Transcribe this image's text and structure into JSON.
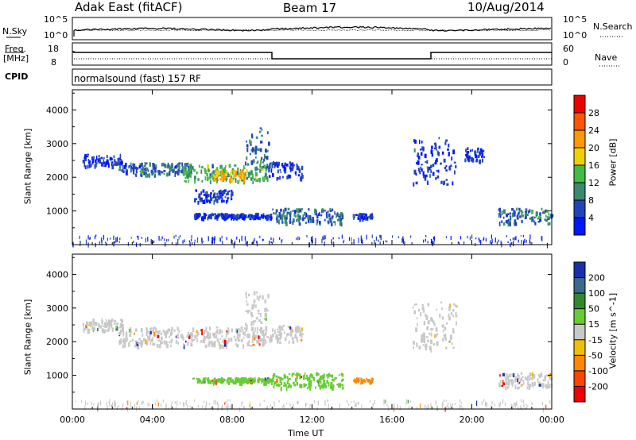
{
  "header": {
    "site": "Adak East (fitACF)",
    "beam": "Beam 17",
    "date": "10/Aug/2014"
  },
  "sky_panel": {
    "left_label": "N.Sky",
    "right_label": "N.Search",
    "ticks_left": [
      "10^5",
      "10^0"
    ],
    "ticks_right": [
      "10^5",
      "10^0"
    ]
  },
  "freq_panel": {
    "left_label_1": "Freq.",
    "left_label_2": "[MHz]",
    "right_label": "Nave",
    "ticks_left": [
      "18",
      "8"
    ],
    "ticks_right": [
      "60",
      "0"
    ]
  },
  "cpid": {
    "label": "CPID",
    "value": "normalsound (fast) 157 RF"
  },
  "chart_data": [
    {
      "type": "heatmap",
      "title": "",
      "ylabel": "Slant Range [km]",
      "xlabel": "",
      "ylim": [
        0,
        4600
      ],
      "xlim": [
        0,
        24
      ],
      "yticks": [
        "1000",
        "2000",
        "3000",
        "4000"
      ],
      "colorbar": {
        "label": "Power [dB]",
        "ticks": [
          "4",
          "8",
          "12",
          "16",
          "20",
          "24",
          "28"
        ],
        "colors": [
          "#0018ff",
          "#2244bb",
          "#3a8a70",
          "#44bb44",
          "#f0d000",
          "#ff9900",
          "#ff5500",
          "#ee0000"
        ]
      },
      "regions": [
        {
          "t0": 0.5,
          "t1": 2.5,
          "r0": 2350,
          "r1": 2700,
          "level": 1
        },
        {
          "t0": 2.3,
          "t1": 6.0,
          "r0": 2100,
          "r1": 2450,
          "level": 2
        },
        {
          "t0": 5.5,
          "t1": 9.8,
          "r0": 1900,
          "r1": 2400,
          "level": 3
        },
        {
          "t0": 7.0,
          "t1": 8.6,
          "r0": 1950,
          "r1": 2250,
          "level": 5
        },
        {
          "t0": 8.6,
          "t1": 9.8,
          "r0": 2400,
          "r1": 3500,
          "level": 2
        },
        {
          "t0": 9.8,
          "t1": 11.5,
          "r0": 2000,
          "r1": 2500,
          "level": 1
        },
        {
          "t0": 6.0,
          "t1": 8.0,
          "r0": 1300,
          "r1": 1650,
          "level": 1
        },
        {
          "t0": 6.0,
          "t1": 10.0,
          "r0": 820,
          "r1": 950,
          "level": 1
        },
        {
          "t0": 10.0,
          "t1": 13.5,
          "r0": 650,
          "r1": 1100,
          "level": 2
        },
        {
          "t0": 14.0,
          "t1": 15.0,
          "r0": 800,
          "r1": 950,
          "level": 1
        },
        {
          "t0": 17.0,
          "t1": 19.2,
          "r0": 1800,
          "r1": 3200,
          "level": 1
        },
        {
          "t0": 19.6,
          "t1": 20.6,
          "r0": 2500,
          "r1": 2900,
          "level": 1
        },
        {
          "t0": 21.3,
          "t1": 24.0,
          "r0": 650,
          "r1": 1100,
          "level": 2
        }
      ]
    },
    {
      "type": "heatmap",
      "title": "",
      "ylabel": "Slant Range [km]",
      "xlabel": "Time UT",
      "ylim": [
        0,
        4600
      ],
      "xlim": [
        0,
        24
      ],
      "yticks": [
        "1000",
        "2000",
        "3000",
        "4000"
      ],
      "xticks": [
        "00:00",
        "04:00",
        "08:00",
        "12:00",
        "16:00",
        "20:00",
        "00:00"
      ],
      "colorbar": {
        "label": "Velocity [m s^-1]",
        "ticks": [
          "200",
          "100",
          "50",
          "15",
          "-15",
          "-50",
          "-100",
          "-200"
        ],
        "colors": [
          "#1a2fb0",
          "#3a6a8a",
          "#2f8a2f",
          "#66cc33",
          "#c8c8c8",
          "#f0c000",
          "#ff8800",
          "#ff4400",
          "#ee0000"
        ]
      },
      "regions": [
        {
          "t0": 0.5,
          "t1": 2.5,
          "r0": 2350,
          "r1": 2700,
          "velocity": 0
        },
        {
          "t0": 2.3,
          "t1": 9.8,
          "r0": 1900,
          "r1": 2450,
          "velocity": 0
        },
        {
          "t0": 8.6,
          "t1": 9.8,
          "r0": 2400,
          "r1": 3500,
          "velocity": 0
        },
        {
          "t0": 9.8,
          "t1": 11.5,
          "r0": 2000,
          "r1": 2500,
          "velocity": 0
        },
        {
          "t0": 6.0,
          "t1": 10.0,
          "r0": 820,
          "r1": 950,
          "velocity": 40
        },
        {
          "t0": 10.0,
          "t1": 13.5,
          "r0": 650,
          "r1": 1100,
          "velocity": 40
        },
        {
          "t0": 14.0,
          "t1": 15.0,
          "r0": 820,
          "r1": 950,
          "velocity": -70
        },
        {
          "t0": 17.0,
          "t1": 19.2,
          "r0": 1800,
          "r1": 3200,
          "velocity": 0
        },
        {
          "t0": 21.3,
          "t1": 24.0,
          "r0": 650,
          "r1": 1100,
          "velocity": 0
        }
      ]
    }
  ]
}
